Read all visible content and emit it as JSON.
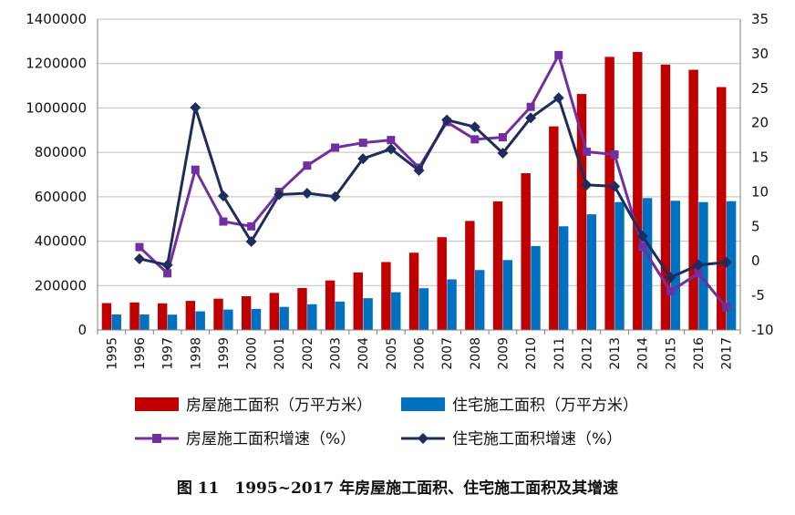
{
  "caption": "图 11　1995~2017 年房屋施工面积、住宅施工面积及其增速",
  "colors": {
    "bar_housing": "#C00000",
    "bar_residential": "#0070C0",
    "line_housing": "#7030A0",
    "line_residential": "#1F2D5C",
    "grid": "#BFBFBF",
    "axis": "#7F7F7F"
  },
  "chart_data": {
    "type": "bar",
    "categories": [
      "1995",
      "1996",
      "1997",
      "1998",
      "1999",
      "2000",
      "2001",
      "2002",
      "2003",
      "2004",
      "2005",
      "2006",
      "2007",
      "2008",
      "2009",
      "2010",
      "2011",
      "2012",
      "2013",
      "2014",
      "2015",
      "2016",
      "2017"
    ],
    "left_axis": {
      "min": 0,
      "max": 1400000,
      "step": 200000,
      "tick_labels": [
        "0",
        "200000",
        "400000",
        "600000",
        "800000",
        "1000000",
        "1200000",
        "1400000"
      ]
    },
    "right_axis": {
      "min": -10,
      "max": 35,
      "step": 5,
      "tick_labels": [
        "-10",
        "-5",
        "0",
        "5",
        "10",
        "15",
        "20",
        "25",
        "30",
        "35"
      ]
    },
    "grid": true,
    "legend_position": "bottom",
    "series": [
      {
        "name": "房屋施工面积（万平方米）",
        "kind": "bar",
        "axis": "left",
        "color_key": "bar_housing",
        "values": [
          121000,
          124000,
          120000,
          131000,
          141000,
          152000,
          167000,
          189000,
          223000,
          259000,
          306000,
          348000,
          418000,
          491000,
          579000,
          706000,
          917000,
          1063000,
          1230000,
          1252000,
          1195000,
          1172000,
          1094000
        ]
      },
      {
        "name": "住宅施工面积（万平方米）",
        "kind": "bar",
        "axis": "left",
        "color_key": "bar_residential",
        "values": [
          70000,
          70000,
          69000,
          84000,
          92000,
          95000,
          104000,
          116000,
          128000,
          143000,
          170000,
          188000,
          228000,
          270000,
          315000,
          378000,
          467000,
          521000,
          576000,
          594000,
          582000,
          576000,
          580000
        ]
      },
      {
        "name": "房屋施工面积增速（%）",
        "kind": "line",
        "axis": "right",
        "color_key": "line_housing",
        "marker": "square",
        "values": [
          null,
          2,
          -1.8,
          13.2,
          5.7,
          5,
          10,
          13.8,
          16.4,
          17.1,
          17.5,
          13.5,
          20.1,
          17.6,
          17.9,
          22.3,
          29.8,
          15.8,
          15.4,
          2,
          -4.4,
          -1.8,
          -6.7
        ]
      },
      {
        "name": "住宅施工面积增速（%）",
        "kind": "line",
        "axis": "right",
        "color_key": "line_residential",
        "marker": "diamond",
        "values": [
          null,
          0.3,
          -0.6,
          22.2,
          9.4,
          2.8,
          9.6,
          9.8,
          9.3,
          14.8,
          16.2,
          13.1,
          20.4,
          19.4,
          15.6,
          20.7,
          23.6,
          11,
          10.8,
          3.6,
          -2.4,
          -0.6,
          -0.2
        ]
      }
    ]
  }
}
